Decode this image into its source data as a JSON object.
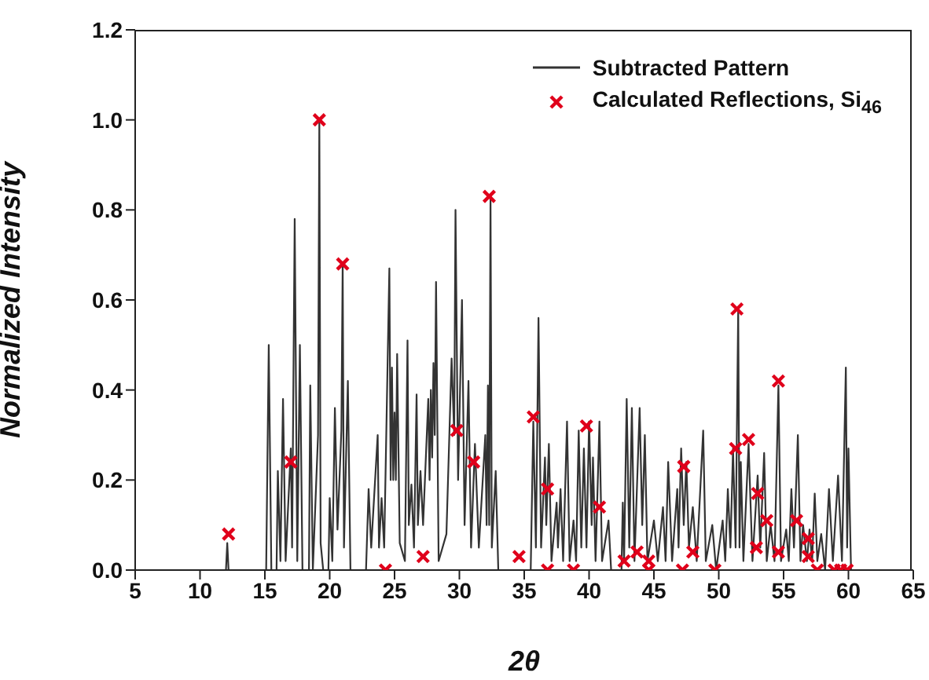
{
  "chart_data": {
    "type": "line",
    "xlabel": "2θ",
    "ylabel": "Normalized Intensity",
    "xlim": [
      5,
      65
    ],
    "xticks": [
      5,
      10,
      15,
      20,
      25,
      30,
      35,
      40,
      45,
      50,
      55,
      60,
      65
    ],
    "ylim": [
      0,
      1.2
    ],
    "yticks": [
      {
        "value": 0,
        "label": "0.0"
      },
      0.2,
      0.4,
      0.6,
      0.8,
      {
        "value": 1,
        "label": "1.0"
      },
      1.2
    ],
    "grid": false,
    "legend": "top right",
    "series": [
      {
        "name": "Subtracted Pattern",
        "color": "#333333",
        "marker": "none",
        "line_style": "solid",
        "x": [
          10,
          12.0,
          12.1,
          12.2,
          15.1,
          15.3,
          15.5,
          15.9,
          16.0,
          16.2,
          16.4,
          16.6,
          17.0,
          17.1,
          17.3,
          17.5,
          17.7,
          17.9,
          18.4,
          18.5,
          18.7,
          19.1,
          19.2,
          19.3,
          19.5,
          19.9,
          20.0,
          20.2,
          20.4,
          20.6,
          20.9,
          21.0,
          21.1,
          21.4,
          21.6,
          22.8,
          23.0,
          23.2,
          23.7,
          23.8,
          24.0,
          24.2,
          24.6,
          24.7,
          24.8,
          24.9,
          25.0,
          25.1,
          25.2,
          25.4,
          25.8,
          26.0,
          26.1,
          26.3,
          26.5,
          26.7,
          26.8,
          27.0,
          27.2,
          27.6,
          27.7,
          27.8,
          27.9,
          28.0,
          28.1,
          28.2,
          28.4,
          29.0,
          29.4,
          29.6,
          29.7,
          29.9,
          30.2,
          30.4,
          30.7,
          30.9,
          31.2,
          31.5,
          32.0,
          32.1,
          32.2,
          32.3,
          32.4,
          32.5,
          32.8,
          33.0,
          35.5,
          35.7,
          35.9,
          36.1,
          36.3,
          36.6,
          36.7,
          36.9,
          37.1,
          37.5,
          37.6,
          37.8,
          38.0,
          38.3,
          38.5,
          38.8,
          39.0,
          39.2,
          39.4,
          39.6,
          39.8,
          40.0,
          40.2,
          40.3,
          40.5,
          40.8,
          41.0,
          41.5,
          41.7,
          42.5,
          42.6,
          42.7,
          42.9,
          43.1,
          43.3,
          43.5,
          43.9,
          44.1,
          44.3,
          44.5,
          45.0,
          45.3,
          45.7,
          45.9,
          46.1,
          46.4,
          46.8,
          46.9,
          47.1,
          47.3,
          47.5,
          47.7,
          48.0,
          48.3,
          48.8,
          49.0,
          49.5,
          49.8,
          50.3,
          50.5,
          50.7,
          50.9,
          51.1,
          51.3,
          51.5,
          51.6,
          51.7,
          51.9,
          52.3,
          52.6,
          53.0,
          53.2,
          53.5,
          53.7,
          54.0,
          54.3,
          54.6,
          54.8,
          55.2,
          55.4,
          55.6,
          55.8,
          56.1,
          56.3,
          56.5,
          56.8,
          57.0,
          57.2,
          57.4,
          57.6,
          57.9,
          58.2,
          58.5,
          58.8,
          59.2,
          59.5,
          59.8,
          59.9,
          60.0,
          60.2,
          61
        ],
        "values": [
          0,
          0,
          0.06,
          0,
          0,
          0.5,
          0,
          0,
          0.22,
          0.02,
          0.38,
          0.02,
          0.27,
          0.05,
          0.78,
          0.02,
          0.5,
          0,
          0,
          0.41,
          0,
          0.3,
          1.0,
          0.06,
          0,
          0,
          0.16,
          0.02,
          0.36,
          0.09,
          0.31,
          0.68,
          0.05,
          0.42,
          0,
          0,
          0.18,
          0.05,
          0.3,
          0.05,
          0.16,
          0.05,
          0.67,
          0.2,
          0.45,
          0.2,
          0.35,
          0.2,
          0.48,
          0.06,
          0.02,
          0.51,
          0.1,
          0.19,
          0.05,
          0.39,
          0.1,
          0.22,
          0.1,
          0.38,
          0.2,
          0.4,
          0.25,
          0.46,
          0.3,
          0.64,
          0.02,
          0.08,
          0.47,
          0.3,
          0.8,
          0.2,
          0.6,
          0.1,
          0.42,
          0.05,
          0.28,
          0.05,
          0.3,
          0.1,
          0.41,
          0.1,
          0.83,
          0.05,
          0.22,
          0,
          0,
          0.33,
          0.05,
          0.56,
          0.05,
          0.25,
          0.1,
          0.28,
          0.02,
          0.15,
          0.05,
          0.18,
          0.02,
          0.33,
          0.02,
          0.11,
          0.02,
          0.31,
          0.05,
          0.27,
          0.05,
          0.33,
          0.1,
          0.25,
          0.02,
          0.33,
          0.02,
          0.11,
          0,
          0,
          0.15,
          0.02,
          0.38,
          0.05,
          0.36,
          0.02,
          0.36,
          0.1,
          0.3,
          0.02,
          0.11,
          0.02,
          0.14,
          0.02,
          0.24,
          0.02,
          0.18,
          0.05,
          0.27,
          0.1,
          0.24,
          0.05,
          0.14,
          0.02,
          0.31,
          0.02,
          0.1,
          0,
          0.11,
          0.02,
          0.18,
          0.05,
          0.27,
          0.05,
          0.58,
          0.05,
          0.24,
          0.02,
          0.28,
          0.02,
          0.21,
          0.05,
          0.26,
          0.02,
          0.1,
          0.02,
          0.41,
          0.02,
          0.09,
          0.02,
          0.18,
          0.05,
          0.3,
          0.02,
          0.1,
          0.02,
          0.09,
          0.02,
          0.17,
          0.02,
          0.08,
          0,
          0.18,
          0.02,
          0.21,
          0.02,
          0.45,
          0.05,
          0.27,
          0,
          0
        ]
      },
      {
        "name": "Calculated Reflections, Si$_{46}$",
        "type": "scatter",
        "color": "#e0001b",
        "marker": "cross",
        "x": [
          12.2,
          17.0,
          19.2,
          21.0,
          24.3,
          27.2,
          29.8,
          31.1,
          32.3,
          34.6,
          35.7,
          36.8,
          36.8,
          38.8,
          39.8,
          40.8,
          42.7,
          43.7,
          44.6,
          44.6,
          47.2,
          47.3,
          48.0,
          49.7,
          51.4,
          51.3,
          52.3,
          53.0,
          52.9,
          53.7,
          54.6,
          54.6,
          56.0,
          56.9,
          56.9,
          57.6,
          58.9,
          59.4,
          59.9
        ],
        "values": [
          0.08,
          0.24,
          1.0,
          0.68,
          0.0,
          0.03,
          0.31,
          0.24,
          0.83,
          0.03,
          0.34,
          0.18,
          0.0,
          0.0,
          0.32,
          0.14,
          0.02,
          0.04,
          0.02,
          0.0,
          0.0,
          0.23,
          0.04,
          0.0,
          0.58,
          0.27,
          0.29,
          0.17,
          0.05,
          0.11,
          0.42,
          0.04,
          0.11,
          0.07,
          0.03,
          0.0,
          0.0,
          0.0,
          0.0
        ]
      }
    ]
  }
}
